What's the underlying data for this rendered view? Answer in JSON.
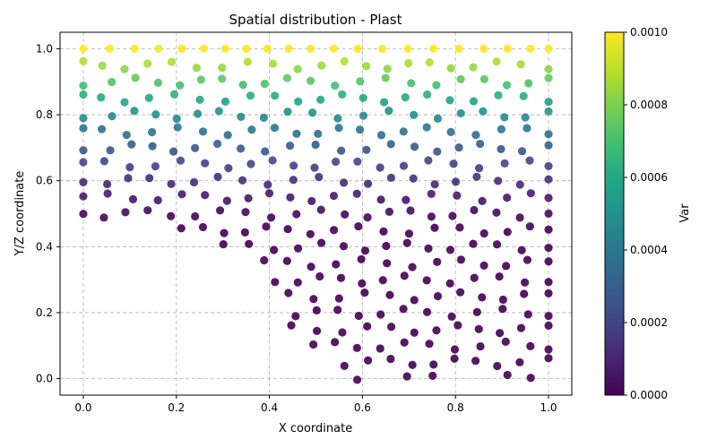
{
  "chart_data": {
    "type": "scatter",
    "title": "Spatial distribution - Plast",
    "xlabel": "X coordinate",
    "ylabel": "Y/Z coordinate",
    "xlim": [
      -0.05,
      1.05
    ],
    "ylim": [
      -0.05,
      1.05
    ],
    "x_ticks": [
      "0.0",
      "0.2",
      "0.4",
      "0.6",
      "0.8",
      "1.0"
    ],
    "y_ticks": [
      "0.0",
      "0.2",
      "0.4",
      "0.6",
      "0.8",
      "1.0"
    ],
    "grid": true,
    "colormap": "viridis",
    "colorbar": {
      "label": "Var",
      "range": [
        0.0,
        0.001
      ],
      "ticks": [
        "0.0000",
        "0.0002",
        "0.0004",
        "0.0006",
        "0.0008",
        "0.0010"
      ]
    },
    "boundary": [
      [
        0.0,
        0.5
      ],
      [
        0.2,
        0.45
      ],
      [
        0.35,
        0.35
      ],
      [
        0.45,
        0.15
      ],
      [
        0.55,
        0.0
      ]
    ],
    "columns_x": [
      0.0,
      0.05,
      0.1,
      0.15,
      0.2,
      0.25,
      0.3,
      0.35,
      0.4,
      0.45,
      0.5,
      0.55,
      0.6,
      0.65,
      0.7,
      0.75,
      0.8,
      0.85,
      0.9,
      0.95,
      1.0
    ],
    "rows_y": [
      0.0,
      0.05,
      0.1,
      0.15,
      0.2,
      0.25,
      0.3,
      0.35,
      0.4,
      0.45,
      0.5,
      0.55,
      0.6,
      0.65,
      0.7,
      0.75,
      0.8,
      0.85,
      0.9,
      0.95,
      1.0
    ],
    "value_model": {
      "y_zero": 0.45,
      "y_full": 1.0,
      "exponent": 1.6
    }
  }
}
